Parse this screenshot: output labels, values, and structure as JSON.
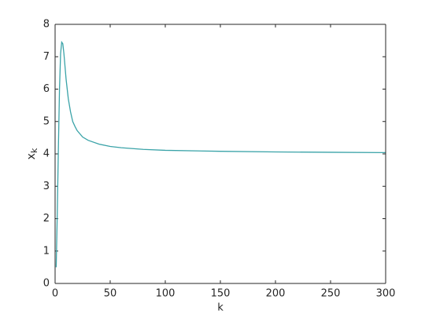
{
  "chart_data": {
    "type": "line",
    "xlabel": "k",
    "ylabel": "x",
    "ylabel_subscript": "k",
    "series": [
      {
        "color": "#3aa3a8",
        "x": [
          1,
          2,
          3,
          4,
          5,
          6,
          7,
          8,
          9,
          10,
          12,
          14,
          16,
          18,
          20,
          25,
          30,
          40,
          50,
          60,
          80,
          100,
          150,
          200,
          250,
          300
        ],
        "values": [
          0.5,
          2.2,
          4.2,
          6.0,
          7.1,
          7.45,
          7.4,
          7.1,
          6.7,
          6.3,
          5.7,
          5.3,
          5.0,
          4.85,
          4.72,
          4.52,
          4.42,
          4.3,
          4.23,
          4.19,
          4.14,
          4.11,
          4.08,
          4.06,
          4.05,
          4.04
        ]
      }
    ],
    "xlim": [
      0,
      300
    ],
    "xticks": [
      0,
      50,
      100,
      150,
      200,
      250,
      300
    ],
    "ylim": [
      0,
      8
    ],
    "yticks": [
      0,
      1,
      2,
      3,
      4,
      5,
      6,
      7,
      8
    ],
    "box": true
  }
}
